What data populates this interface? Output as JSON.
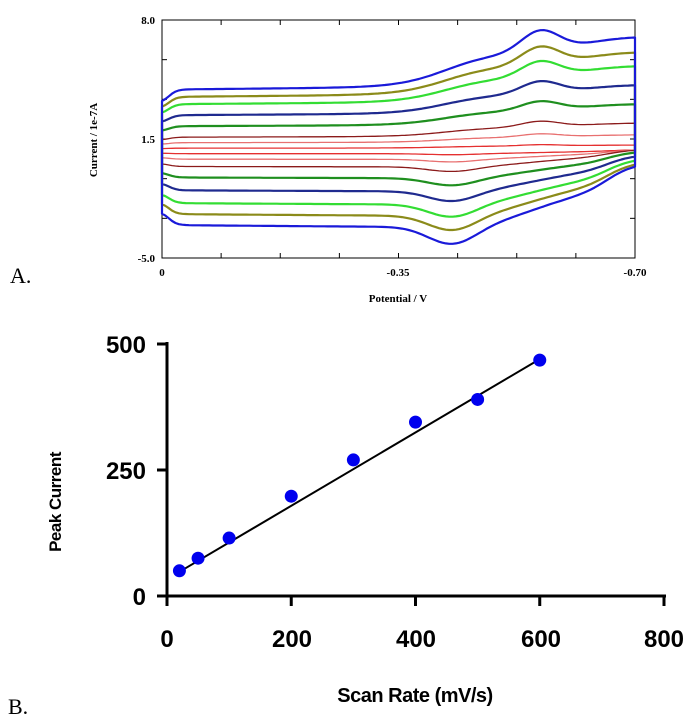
{
  "panels": {
    "a_label": "A.",
    "b_label": "B."
  },
  "chart_data": [
    {
      "type": "line",
      "xlabel": "Potential / V",
      "ylabel": "Current / 1e-7A",
      "xlim": [
        0,
        -0.7
      ],
      "ylim": [
        -5.0,
        8.0
      ],
      "x_ticks": [
        "0",
        "-0.35",
        "-0.70"
      ],
      "y_ticks": [
        "8.0",
        "1.5",
        "-5.0"
      ],
      "grid": false,
      "series": [
        {
          "color": "#e53030",
          "upper": 1.0,
          "lower": 0.7,
          "peak": 0.2
        },
        {
          "color": "#e87070",
          "upper": 1.3,
          "lower": 0.4,
          "peak": 0.5
        },
        {
          "color": "#8b1a1a",
          "upper": 1.6,
          "lower": 0.0,
          "peak": 0.9
        },
        {
          "color": "#1f8f1f",
          "upper": 2.2,
          "lower": -0.6,
          "peak": 1.4
        },
        {
          "color": "#1f2a8f",
          "upper": 2.8,
          "lower": -1.3,
          "peak": 1.9
        },
        {
          "color": "#33dd33",
          "upper": 3.4,
          "lower": -2.0,
          "peak": 2.4
        },
        {
          "color": "#8b8b1a",
          "upper": 3.8,
          "lower": -2.6,
          "peak": 2.8
        },
        {
          "color": "#1a1ad9",
          "upper": 4.2,
          "lower": -3.2,
          "peak": 3.3
        }
      ]
    },
    {
      "type": "scatter",
      "xlabel": "Scan Rate (mV/s)",
      "ylabel": "Peak Current",
      "xlim": [
        0,
        800
      ],
      "ylim": [
        0,
        500
      ],
      "x_ticks": [
        "0",
        "200",
        "400",
        "600",
        "800"
      ],
      "y_ticks": [
        "0",
        "250",
        "500"
      ],
      "grid": false,
      "points": {
        "x": [
          20,
          50,
          100,
          200,
          300,
          400,
          500,
          600
        ],
        "y": [
          50,
          75,
          115,
          198,
          270,
          345,
          390,
          468
        ]
      },
      "fit": {
        "x": [
          20,
          600
        ],
        "y": [
          48,
          470
        ]
      },
      "point_color": "#0000ee"
    }
  ]
}
